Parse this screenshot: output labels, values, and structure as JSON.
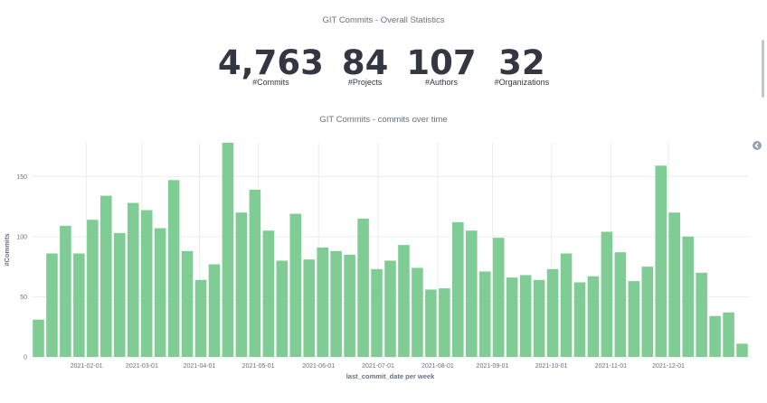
{
  "stats_panel": {
    "title": "GIT Commits - Overall Statistics",
    "metrics": [
      {
        "value": "4,763",
        "label": "#Commits"
      },
      {
        "value": "84",
        "label": "#Projects"
      },
      {
        "value": "107",
        "label": "#Authors"
      },
      {
        "value": "32",
        "label": "#Organizations"
      }
    ]
  },
  "chart_panel": {
    "title": "GIT Commits - commits over time"
  },
  "colors": {
    "bar": "#7fcd95",
    "grid": "#ececec",
    "text": "#343741",
    "muted": "#69707d"
  },
  "icons": {
    "collapse": "chevron-left-circle-icon"
  },
  "chart_data": {
    "type": "bar",
    "title": "GIT Commits - commits over time",
    "xlabel": "last_commit_date per week",
    "ylabel": "#Commits",
    "ylim": [
      0,
      178
    ],
    "yticks": [
      0,
      50,
      100,
      150
    ],
    "xticks": [
      "2021-02-01",
      "2021-03-01",
      "2021-04-01",
      "2021-05-01",
      "2021-06-01",
      "2021-07-01",
      "2021-08-01",
      "2021-09-01",
      "2021-10-01",
      "2021-11-01",
      "2021-12-01"
    ],
    "xtick_positions": [
      4.05,
      8.15,
      12.4,
      16.75,
      21.2,
      25.6,
      30.0,
      34.05,
      38.4,
      42.8,
      47.05
    ],
    "grid": true,
    "values": [
      31,
      86,
      109,
      86,
      114,
      134,
      103,
      128,
      122,
      107,
      147,
      88,
      64,
      77,
      178,
      120,
      139,
      105,
      80,
      119,
      81,
      91,
      88,
      85,
      115,
      73,
      80,
      93,
      74,
      56,
      57,
      112,
      105,
      71,
      99,
      66,
      68,
      64,
      73,
      86,
      62,
      67,
      104,
      87,
      63,
      75,
      159,
      120,
      100,
      70,
      34,
      37,
      11
    ]
  }
}
